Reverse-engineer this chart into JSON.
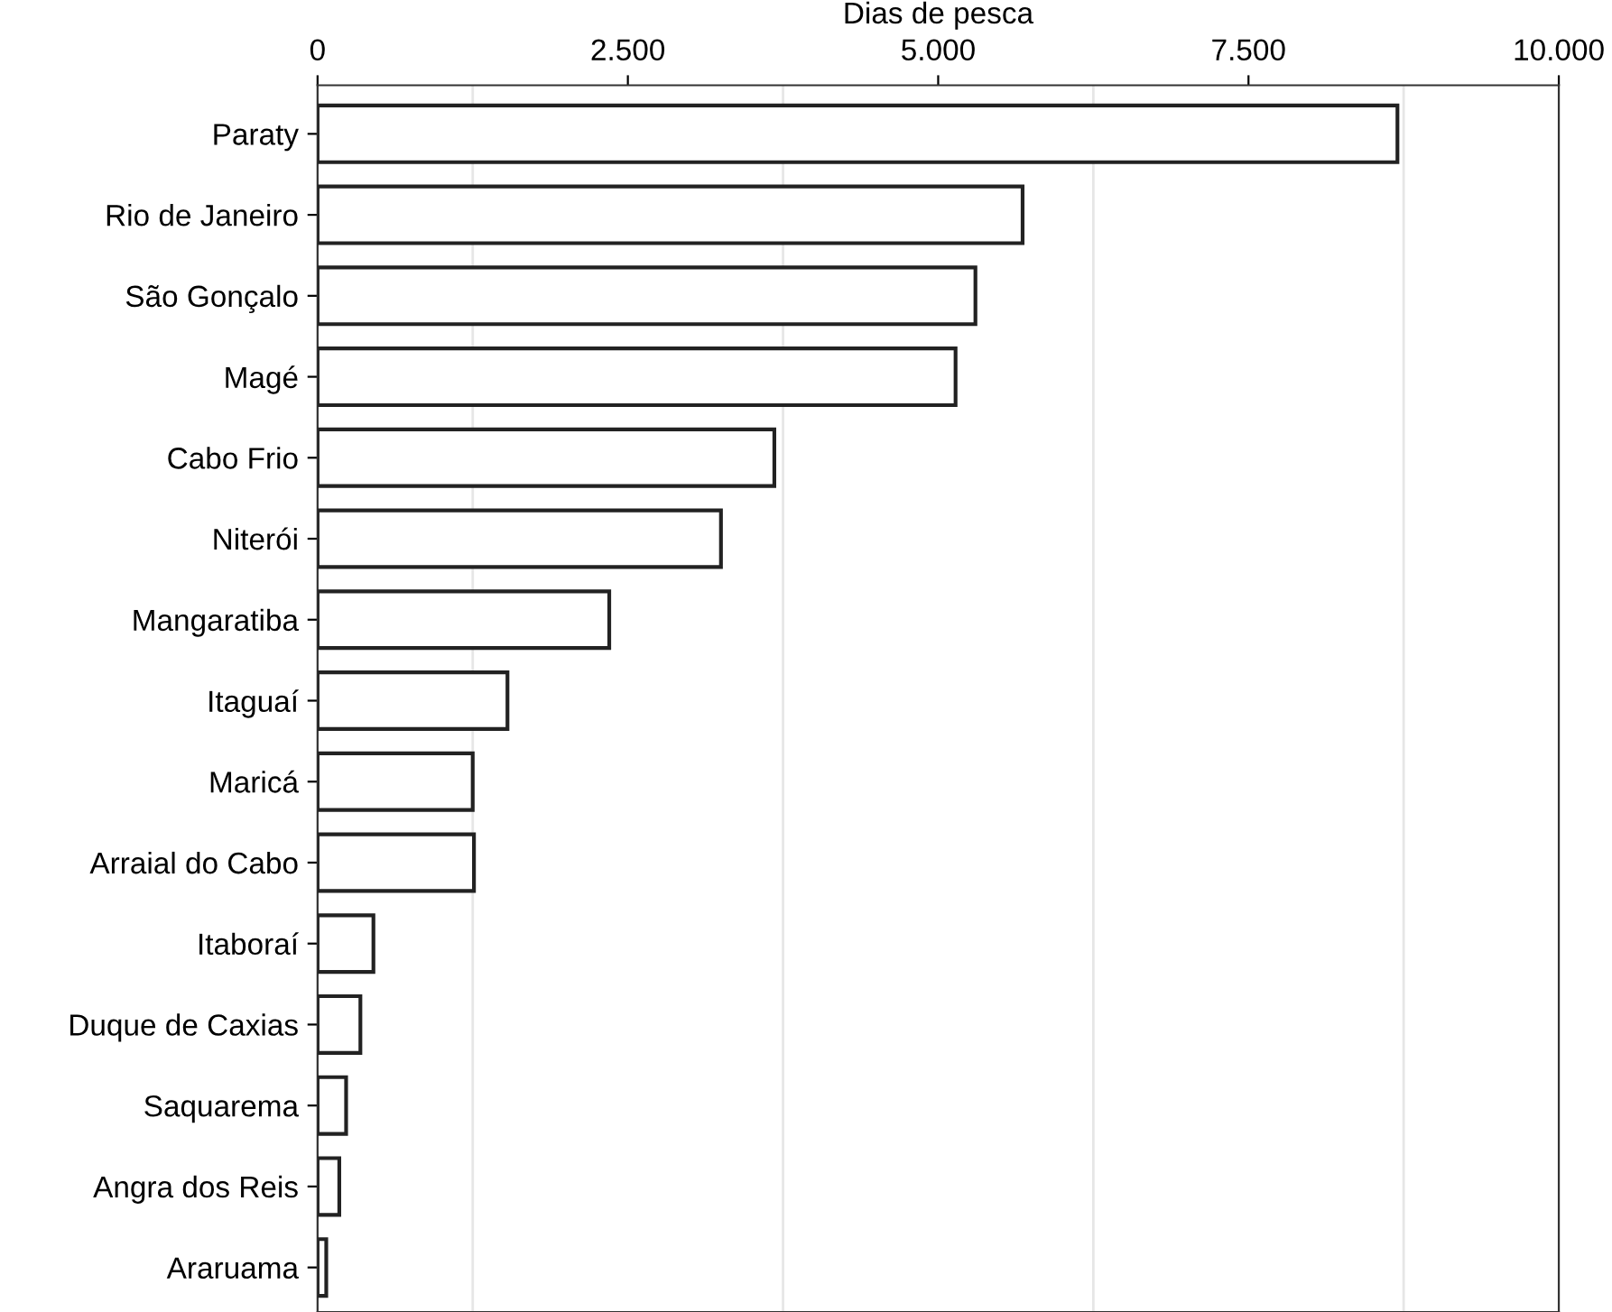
{
  "chart_data": {
    "type": "bar",
    "orientation": "horizontal",
    "xlabel": "Dias de pesca",
    "categories": [
      "Paraty",
      "Rio de Janeiro",
      "São Gonçalo",
      "Magé",
      "Cabo Frio",
      "Niterói",
      "Mangaratiba",
      "Itaguaí",
      "Maricá",
      "Arraial do Cabo",
      "Itaboraí",
      "Duque de Caxias",
      "Saquarema",
      "Angra dos Reis",
      "Araruama"
    ],
    "values": [
      8700,
      5680,
      5300,
      5140,
      3680,
      3250,
      2350,
      1530,
      1250,
      1260,
      450,
      345,
      230,
      175,
      70
    ],
    "color": "#ffffff",
    "xlim": [
      0,
      10000
    ],
    "xticks": [
      0,
      {
        "value": 2500,
        "label": "2.500"
      },
      {
        "value": 5000,
        "label": "5.000"
      },
      {
        "value": 7500,
        "label": "7.500"
      },
      {
        "value": 10000,
        "label": "10.000"
      }
    ],
    "grid": "x"
  }
}
